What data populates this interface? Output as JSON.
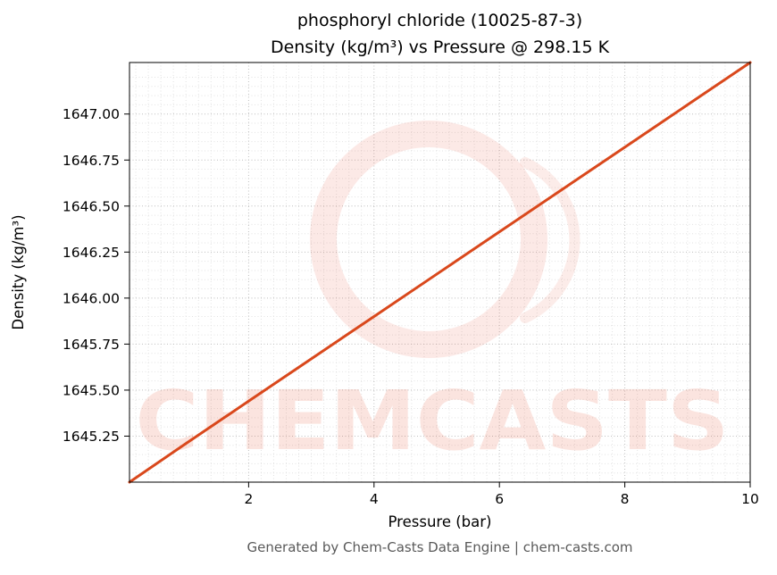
{
  "header": {
    "title_line1": "phosphoryl chloride (10025-87-3)",
    "title_line2": "Density (kg/m³) vs Pressure @ 298.15 K"
  },
  "footer": {
    "text": "Generated by Chem-Casts Data Engine | chem-casts.com"
  },
  "watermark": {
    "text": "CHEMCASTS",
    "color": "#e8543a",
    "text_opacity": 0.16,
    "ring_opacity": 0.13
  },
  "chart_data": {
    "type": "line",
    "title": "phosphoryl chloride (10025-87-3) — Density (kg/m³) vs Pressure @ 298.15 K",
    "xlabel": "Pressure (bar)",
    "ylabel": "Density (kg/m³)",
    "xlim": [
      0.1,
      10
    ],
    "ylim": [
      1645.0,
      1647.28
    ],
    "x_ticks": [
      2,
      4,
      6,
      8,
      10
    ],
    "x_tick_labels": [
      "2",
      "4",
      "6",
      "8",
      "10"
    ],
    "y_ticks": [
      1645.25,
      1645.5,
      1645.75,
      1646.0,
      1646.25,
      1646.5,
      1646.75,
      1647.0
    ],
    "y_tick_labels": [
      "1645.25",
      "1645.50",
      "1645.75",
      "1646.00",
      "1646.25",
      "1646.50",
      "1646.75",
      "1647.00"
    ],
    "grid": true,
    "line_color": "#d9481c",
    "line_width": 3,
    "series": [
      {
        "name": "Density vs Pressure @ 298.15 K",
        "x": [
          0.1,
          1,
          2,
          3,
          4,
          5,
          6,
          7,
          8,
          9,
          10
        ],
        "y": [
          1645.0,
          1645.21,
          1645.44,
          1645.67,
          1645.9,
          1646.13,
          1646.36,
          1646.59,
          1646.82,
          1647.05,
          1647.28
        ]
      }
    ]
  }
}
